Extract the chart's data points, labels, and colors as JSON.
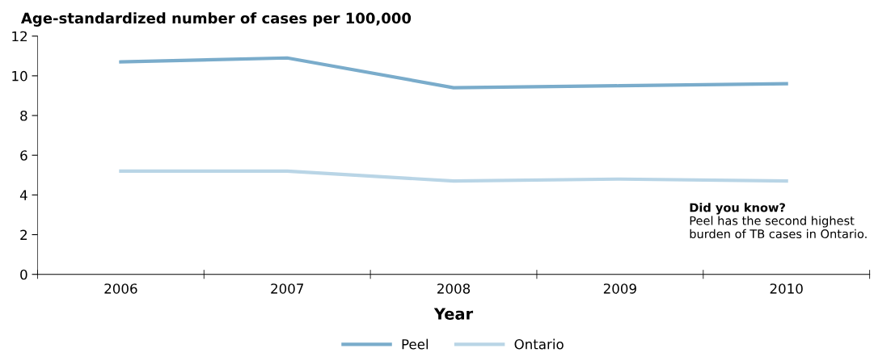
{
  "chart_data": {
    "type": "line",
    "ylabel": "Age-standardized number of cases per 100,000",
    "xlabel": "Year",
    "categories": [
      "2006",
      "2007",
      "2008",
      "2009",
      "2010"
    ],
    "series": [
      {
        "name": "Peel",
        "color": "#7aaccb",
        "values": [
          10.7,
          10.9,
          9.4,
          9.5,
          9.6
        ]
      },
      {
        "name": "Ontario",
        "color": "#b9d5e6",
        "values": [
          5.2,
          5.2,
          4.7,
          4.8,
          4.7
        ]
      }
    ],
    "ylim": [
      0,
      12
    ],
    "yticks": [
      0,
      2,
      4,
      6,
      8,
      10,
      12
    ],
    "grid": false,
    "legend": "bottom",
    "marker": "none",
    "line_style": "solid",
    "annotations": [
      "Did you know?",
      "Peel has the second highest\nburden of TB cases in Ontario."
    ]
  }
}
